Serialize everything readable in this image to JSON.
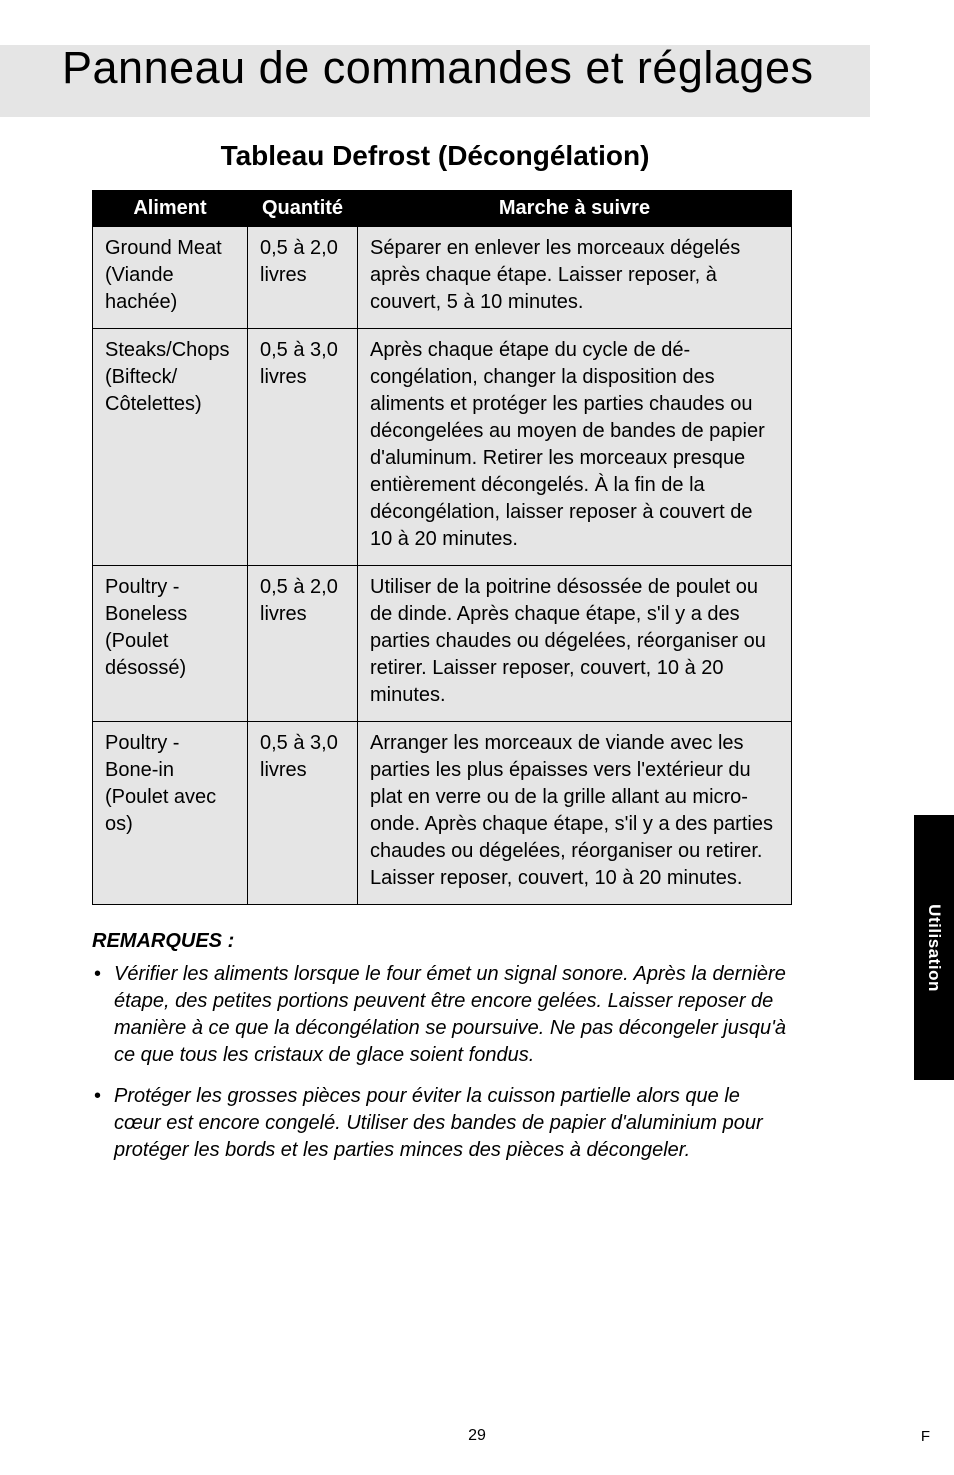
{
  "page": {
    "title": "Panneau de commandes et réglages",
    "subtitle": "Tableau Defrost (Décongélation)",
    "pageNumber": "29",
    "langMarker": "F",
    "sideTab": "Utilisation"
  },
  "table": {
    "headers": {
      "aliment": "Aliment",
      "quantite": "Quantité",
      "marche": "Marche à suivre"
    },
    "rows": [
      {
        "aliment": "Ground Meat (Viande hachée)",
        "quantite": "0,5 à 2,0 livres",
        "marche": "Séparer en enlever les morceaux dégelés après chaque étape. Laisser reposer, à couvert, 5 à 10 minutes."
      },
      {
        "aliment": "Steaks/Chops (Bifteck/ Côtelettes)",
        "quantite": "0,5 à 3,0 livres",
        "marche": "Après chaque étape du cycle de dé-congélation, changer la disposition des aliments et protéger les parties chaudes ou décongelées au moyen de bandes de papier d'aluminum. Retirer les morceaux presque entièrement décongelés. À la fin de la décongélation, laisser reposer à couvert de 10 à 20 minutes."
      },
      {
        "aliment": "Poultry - Boneless (Poulet désossé)",
        "quantite": "0,5 à 2,0 livres",
        "marche": "Utiliser de la poitrine désossée de poulet ou de dinde. Après chaque étape, s'il y a des parties chaudes ou dégelées, réorganiser ou retirer. Laisser reposer, couvert, 10 à 20 minutes."
      },
      {
        "aliment": "Poultry - Bone-in (Poulet avec os)",
        "quantite": "0,5 à 3,0 livres",
        "marche": "Arranger les morceaux de viande avec les parties les plus épaisses vers l'extérieur du plat en verre ou de la grille allant au micro-onde. Après chaque étape, s'il y a des parties chaudes ou dégelées, réorganiser ou retirer. Laisser reposer, couvert, 10 à 20 minutes."
      }
    ]
  },
  "remarks": {
    "title": "REMARQUES :",
    "items": [
      "Vérifier les aliments lorsque le four émet un signal sonore. Après la dernière étape, des petites portions peuvent être encore gelées. Laisser reposer de manière à ce que la décongélation se poursuive. Ne pas décongeler jusqu'à ce que tous les cristaux de glace soient fondus.",
      "Protéger les grosses pièces pour éviter la cuisson partielle alors que le cœur est encore congelé. Utiliser des bandes de papier d'aluminium pour protéger les bords et les parties minces des pièces à décongeler."
    ]
  }
}
